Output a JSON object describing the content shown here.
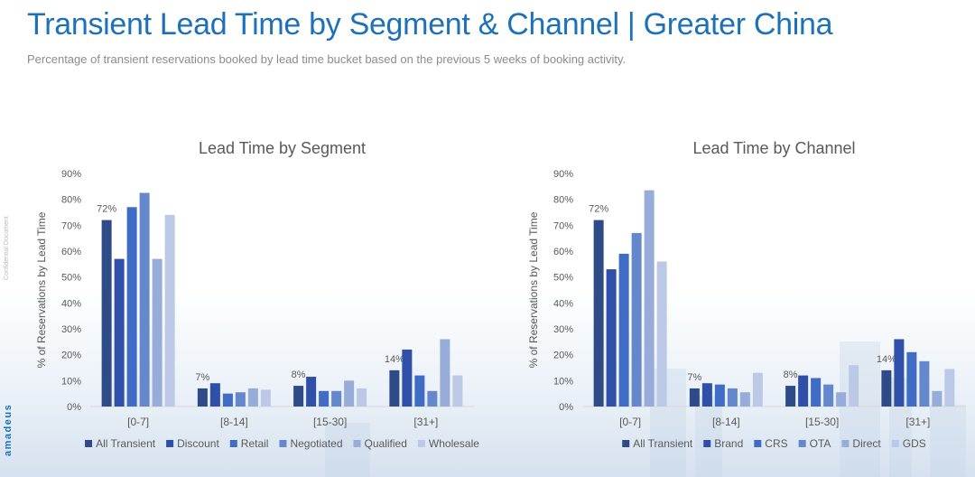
{
  "page": {
    "title": "Transient Lead Time by Segment & Channel | Greater China",
    "subtitle": "Percentage of transient reservations booked by lead time bucket based on the previous 5 weeks of booking activity.",
    "side_note": "Confidential Document",
    "brand": "amadeus"
  },
  "colors": [
    "#2e4a87",
    "#2f4fa8",
    "#3f6cc4",
    "#6587cc",
    "#97acd9",
    "#bcc9e6"
  ],
  "chart_data": [
    {
      "id": "segment",
      "type": "bar",
      "title": "Lead Time by Segment",
      "xlabel": "",
      "ylabel": "% of Reservations by Lead Time",
      "ylim": [
        0,
        90
      ],
      "yticks": [
        0,
        10,
        20,
        30,
        40,
        50,
        60,
        70,
        80,
        90
      ],
      "ytick_labels": [
        "0%",
        "10%",
        "20%",
        "30%",
        "40%",
        "50%",
        "60%",
        "70%",
        "80%",
        "90%"
      ],
      "grid": false,
      "legend": "bottom",
      "categories": [
        "[0-7]",
        "[8-14]",
        "[15-30]",
        "[31+]"
      ],
      "data_labels": [
        "72%",
        "7%",
        "8%",
        "14%"
      ],
      "series": [
        {
          "name": "All Transient",
          "values": [
            72,
            7,
            8,
            14
          ]
        },
        {
          "name": "Discount",
          "values": [
            57,
            9,
            11.5,
            22
          ]
        },
        {
          "name": "Retail",
          "values": [
            77,
            5,
            6,
            12
          ]
        },
        {
          "name": "Negotiated",
          "values": [
            82.5,
            5.5,
            6,
            6
          ]
        },
        {
          "name": "Qualified",
          "values": [
            57,
            7,
            10,
            26
          ]
        },
        {
          "name": "Wholesale",
          "values": [
            74,
            6.5,
            7,
            12
          ]
        }
      ]
    },
    {
      "id": "channel",
      "type": "bar",
      "title": "Lead Time by Channel",
      "xlabel": "",
      "ylabel": "% of Reservations by Lead Time",
      "ylim": [
        0,
        90
      ],
      "yticks": [
        0,
        10,
        20,
        30,
        40,
        50,
        60,
        70,
        80,
        90
      ],
      "ytick_labels": [
        "0%",
        "10%",
        "20%",
        "30%",
        "40%",
        "50%",
        "60%",
        "70%",
        "80%",
        "90%"
      ],
      "grid": false,
      "legend": "bottom",
      "categories": [
        "[0-7]",
        "[8-14]",
        "[15-30]",
        "[31+]"
      ],
      "data_labels": [
        "72%",
        "7%",
        "8%",
        "14%"
      ],
      "series": [
        {
          "name": "All Transient",
          "values": [
            72,
            7,
            8,
            14
          ]
        },
        {
          "name": "Brand",
          "values": [
            53,
            9,
            12,
            26
          ]
        },
        {
          "name": "CRS",
          "values": [
            59,
            8.5,
            11,
            21
          ]
        },
        {
          "name": "OTA",
          "values": [
            67,
            7,
            8.5,
            17.5
          ]
        },
        {
          "name": "Direct",
          "values": [
            83.5,
            5.5,
            5.5,
            6
          ]
        },
        {
          "name": "GDS",
          "values": [
            56,
            13,
            16,
            14.5
          ]
        }
      ]
    }
  ]
}
